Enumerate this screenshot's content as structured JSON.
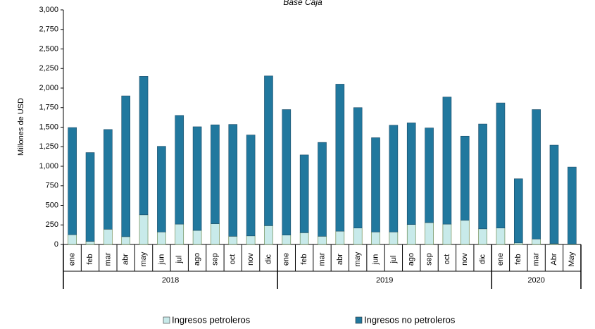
{
  "chart_data": {
    "type": "stacked_bar",
    "title": "Base Caja",
    "y_label": "Millones de USD",
    "categories": [
      "ene",
      "feb",
      "mar",
      "abr",
      "may",
      "jun",
      "jul",
      "ago",
      "sep",
      "oct",
      "nov",
      "dic",
      "ene",
      "feb",
      "mar",
      "abr",
      "may",
      "jun",
      "jul",
      "ago",
      "sep",
      "oct",
      "nov",
      "dic",
      "ene",
      "feb",
      "mar",
      "Abr",
      "May"
    ],
    "category_groups": [
      {
        "label": "2018",
        "size": 12
      },
      {
        "label": "2019",
        "size": 12
      },
      {
        "label": "2020",
        "size": 5
      }
    ],
    "series": [
      {
        "name": "Ingresos petroleros",
        "color": "#c8eaea",
        "values": [
          125,
          40,
          195,
          100,
          380,
          160,
          260,
          180,
          265,
          105,
          110,
          240,
          120,
          150,
          105,
          170,
          210,
          160,
          160,
          255,
          280,
          260,
          310,
          200,
          210,
          20,
          70,
          10,
          5
        ]
      },
      {
        "name": "Ingresos no petroleros",
        "color": "#21789e",
        "values": [
          1370,
          1135,
          1275,
          1800,
          1770,
          1095,
          1390,
          1325,
          1265,
          1430,
          1290,
          1915,
          1605,
          995,
          1200,
          1880,
          1540,
          1205,
          1365,
          1300,
          1210,
          1625,
          1075,
          1340,
          1600,
          820,
          1655,
          1260,
          985
        ]
      }
    ],
    "ylim": [
      0,
      3000
    ],
    "yticks": [
      0,
      250,
      500,
      750,
      {
        "value": 1000,
        "label": "1,000"
      },
      {
        "value": 1250,
        "label": "1,250"
      },
      {
        "value": 1500,
        "label": "1,500"
      },
      {
        "value": 1750,
        "label": "1,750"
      },
      {
        "value": 2000,
        "label": "2,000"
      },
      {
        "value": 2250,
        "label": "2,250"
      },
      {
        "value": 2500,
        "label": "2,500"
      },
      {
        "value": 2750,
        "label": "2,750"
      },
      {
        "value": 3000,
        "label": "3,000"
      }
    ]
  }
}
